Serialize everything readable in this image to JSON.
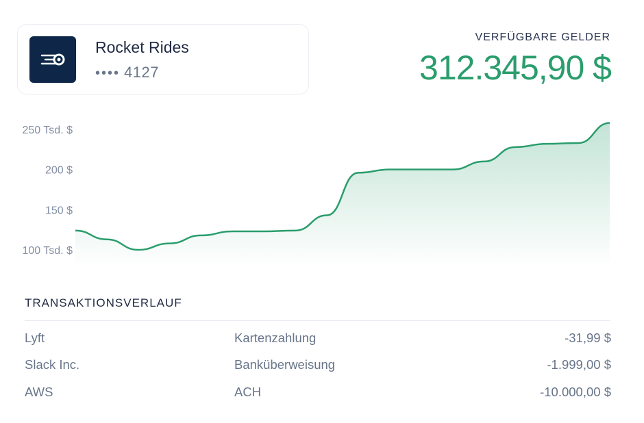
{
  "account": {
    "name": "Rocket Rides",
    "masked_dots": "••••",
    "last4": "4127",
    "logo_icon": "rocket-speed-icon",
    "logo_bg": "#0e2748"
  },
  "balance": {
    "label": "VERFÜGBARE GELDER",
    "amount": "312.345,90 $",
    "color": "#2a9d6c"
  },
  "chart_data": {
    "type": "area",
    "y_ticks": [
      "250 Tsd. $",
      "200 $",
      "150 $",
      "100 Tsd. $"
    ],
    "y_tick_values": [
      250000,
      200000,
      150000,
      100000
    ],
    "ylim": [
      100000,
      250000
    ],
    "values": [
      124000,
      113000,
      100000,
      108000,
      118000,
      123000,
      123000,
      124000,
      143000,
      196000,
      200000,
      200000,
      200000,
      210000,
      228000,
      232000,
      233000,
      258000
    ],
    "grid": false,
    "line_color": "#2a9d6c"
  },
  "transactions": {
    "title": "TRANSAKTIONSVERLAUF",
    "rows": [
      {
        "name": "Lyft",
        "type": "Kartenzahlung",
        "amount": "-31,99 $"
      },
      {
        "name": "Slack Inc.",
        "type": "Banküberweisung",
        "amount": "-1.999,00 $"
      },
      {
        "name": "AWS",
        "type": "ACH",
        "amount": "-10.000,00 $"
      }
    ]
  }
}
